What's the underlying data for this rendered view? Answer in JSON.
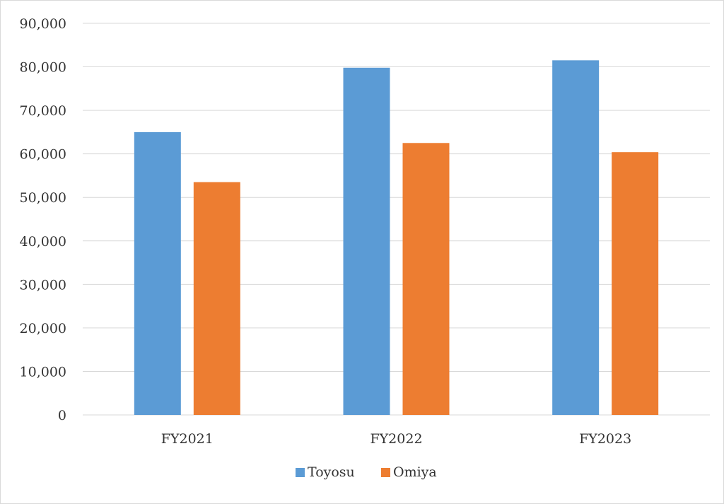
{
  "chart_data": {
    "type": "bar",
    "categories": [
      "FY2021",
      "FY2022",
      "FY2023"
    ],
    "series": [
      {
        "name": "Toyosu",
        "values": [
          65000,
          79800,
          81500
        ],
        "color": "#5b9bd5"
      },
      {
        "name": "Omiya",
        "values": [
          53500,
          62500,
          60400
        ],
        "color": "#ed7d31"
      }
    ],
    "y_ticks": [
      "0",
      "10,000",
      "20,000",
      "30,000",
      "40,000",
      "50,000",
      "60,000",
      "70,000",
      "80,000",
      "90,000"
    ],
    "ylim": [
      0,
      90000
    ],
    "grid": true,
    "legend_position": "bottom",
    "gridline_color": "#d9d9d9"
  }
}
